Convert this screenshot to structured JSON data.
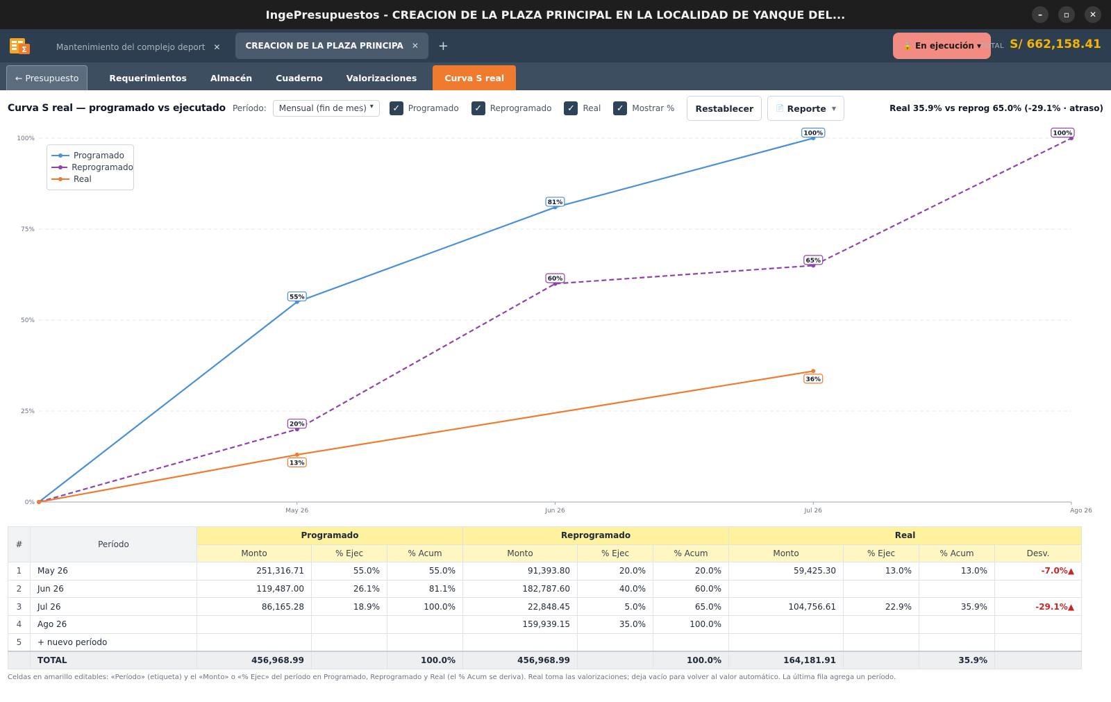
{
  "window": {
    "title": "IngePresupuestos  -  CREACION DE LA PLAZA PRINCIPAL EN LA LOCALIDAD DE YANQUE DEL...",
    "minimize": "–",
    "maximize": "▫",
    "close": "✕"
  },
  "appbar": {
    "tabs": [
      {
        "label": "Mantenimiento del complejo deport",
        "close": "✕"
      },
      {
        "label": "CREACION DE LA PLAZA PRINCIPA",
        "close": "✕"
      }
    ],
    "add_tab": "+",
    "status": {
      "icon": "🔒",
      "label": "En ejecución",
      "caret": "▾"
    },
    "total_label": "TOTAL",
    "total_value": "S/ 662,158.41"
  },
  "nav": {
    "back": "← Presupuesto",
    "items": [
      "Requerimientos",
      "Almacén",
      "Cuaderno",
      "Valorizaciones",
      "Curva S real"
    ]
  },
  "toolbar": {
    "title": "Curva S real — programado vs ejecutado",
    "period_label": "Período:",
    "period_value": "Mensual (fin de mes)",
    "checkboxes": [
      {
        "label": "Programado",
        "checked": true
      },
      {
        "label": "Reprogramado",
        "checked": true
      },
      {
        "label": "Real",
        "checked": true
      },
      {
        "label": "Mostrar %",
        "checked": true
      }
    ],
    "reset_button": "Restablecer",
    "report_button": "Reporte",
    "summary": "Real 35.9% vs reprog 65.0%  (-29.1% · atraso)"
  },
  "chart_data": {
    "type": "line",
    "categories": [
      "",
      "May 26",
      "Jun 26",
      "Jul 26",
      "Ago 26"
    ],
    "y_ticks": [
      "0%",
      "25%",
      "50%",
      "75%",
      "100%"
    ],
    "ylim": [
      0,
      100
    ],
    "grid": true,
    "legend_position": "top-left",
    "series": [
      {
        "name": "Programado",
        "color": "#4a90d9",
        "dash": false,
        "values": [
          0,
          55,
          81,
          100,
          null
        ],
        "labels": [
          null,
          "55%",
          "81%",
          "100%",
          null
        ]
      },
      {
        "name": "Reprogramado",
        "color": "#8e44ad",
        "dash": true,
        "values": [
          0,
          20,
          60,
          65,
          100
        ],
        "labels": [
          null,
          "20%",
          "60%",
          "65%",
          "100%"
        ]
      },
      {
        "name": "Real",
        "color": "#f07b2e",
        "dash": false,
        "values": [
          0,
          13,
          null,
          36,
          null
        ],
        "labels": [
          null,
          "13%",
          null,
          "36%",
          null
        ]
      }
    ]
  },
  "table": {
    "idx_header": "#",
    "period_header": "Período",
    "groups": [
      "Programado",
      "Reprogramado",
      "Real"
    ],
    "sub_headers": [
      "Monto",
      "% Ejec",
      "% Acum",
      "Monto",
      "% Ejec",
      "% Acum",
      "Monto",
      "% Ejec",
      "% Acum",
      "Desv."
    ],
    "rows": [
      {
        "idx": "1",
        "period": "May 26",
        "cells": [
          "251,316.71",
          "55.0%",
          "55.0%",
          "91,393.80",
          "20.0%",
          "20.0%",
          "59,425.30",
          "13.0%",
          "13.0%",
          "-7.0%▲"
        ]
      },
      {
        "idx": "2",
        "period": "Jun 26",
        "cells": [
          "119,487.00",
          "26.1%",
          "81.1%",
          "182,787.60",
          "40.0%",
          "60.0%",
          "",
          "",
          "",
          ""
        ]
      },
      {
        "idx": "3",
        "period": "Jul 26",
        "cells": [
          "86,165.28",
          "18.9%",
          "100.0%",
          "22,848.45",
          "5.0%",
          "65.0%",
          "104,756.61",
          "22.9%",
          "35.9%",
          "-29.1%▲"
        ]
      },
      {
        "idx": "4",
        "period": "Ago 26",
        "cells": [
          "",
          "",
          "",
          "159,939.15",
          "35.0%",
          "100.0%",
          "",
          "",
          "",
          ""
        ]
      },
      {
        "idx": "5",
        "period": "+ nuevo período",
        "cells": [
          "",
          "",
          "",
          "",
          "",
          "",
          "",
          "",
          "",
          ""
        ]
      }
    ],
    "total": {
      "label": "TOTAL",
      "cells": [
        "456,968.99",
        "",
        "100.0%",
        "456,968.99",
        "",
        "100.0%",
        "164,181.91",
        "",
        "35.9%",
        ""
      ]
    }
  },
  "footnote": "Celdas en amarillo editables: «Período» (etiqueta) y el «Monto» o «% Ejec» del período en Programado, Reprogramado y Real (el % Acum se deriva). Real toma las valorizaciones; deja vacío para volver al valor automático. La última fila agrega un período."
}
